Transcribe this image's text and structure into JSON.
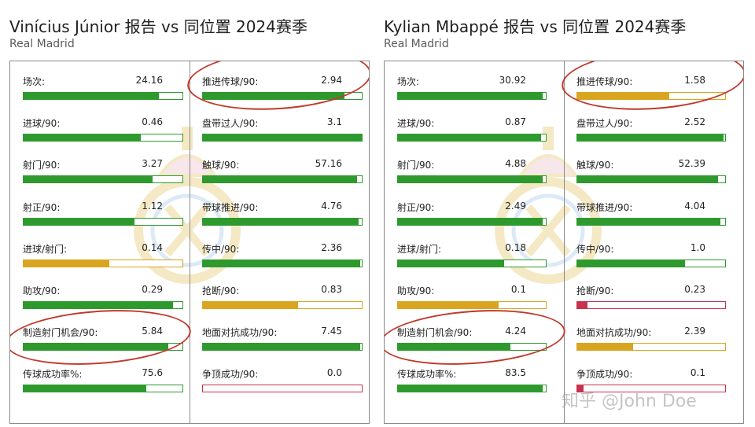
{
  "colors": {
    "good": "#2e9a2e",
    "mid": "#d9a520",
    "bad": "#c8324e"
  },
  "reports": [
    {
      "title": "Vinícius Júnior 报告 vs 同位置 2024赛季",
      "subtitle": "Real Madrid",
      "left": [
        {
          "label": "场次:",
          "value": "24.16",
          "pct": 0.85,
          "level": "good"
        },
        {
          "label": "进球/90:",
          "value": "0.46",
          "pct": 0.74,
          "level": "good"
        },
        {
          "label": "射门/90:",
          "value": "3.27",
          "pct": 0.81,
          "level": "good"
        },
        {
          "label": "射正/90:",
          "value": "1.12",
          "pct": 0.7,
          "level": "good"
        },
        {
          "label": "进球/射门:",
          "value": "0.14",
          "pct": 0.54,
          "level": "mid"
        },
        {
          "label": "助攻/90:",
          "value": "0.29",
          "pct": 0.94,
          "level": "good"
        },
        {
          "label": "制造射门机会/90:",
          "value": "5.84",
          "pct": 0.91,
          "level": "good"
        },
        {
          "label": "传球成功率%:",
          "value": "75.6",
          "pct": 0.77,
          "level": "good"
        }
      ],
      "right": [
        {
          "label": "推进传球/90:",
          "value": "2.94",
          "pct": 0.89,
          "level": "good"
        },
        {
          "label": "盘带过人/90:",
          "value": "3.1",
          "pct": 1.0,
          "level": "good"
        },
        {
          "label": "触球/90:",
          "value": "57.16",
          "pct": 0.97,
          "level": "good"
        },
        {
          "label": "带球推进/90:",
          "value": "4.76",
          "pct": 0.98,
          "level": "good"
        },
        {
          "label": "传中/90:",
          "value": "2.36",
          "pct": 0.99,
          "level": "good"
        },
        {
          "label": "抢断/90:",
          "value": "0.83",
          "pct": 0.6,
          "level": "mid"
        },
        {
          "label": "地面对抗成功/90:",
          "value": "7.45",
          "pct": 0.99,
          "level": "good"
        },
        {
          "label": "争顶成功/90:",
          "value": "0.0",
          "pct": 0.0,
          "level": "bad"
        }
      ]
    },
    {
      "title": "Kylian Mbappé 报告 vs 同位置 2024赛季",
      "subtitle": "Real Madrid",
      "left": [
        {
          "label": "场次:",
          "value": "30.92",
          "pct": 0.98,
          "level": "good"
        },
        {
          "label": "进球/90:",
          "value": "0.87",
          "pct": 0.97,
          "level": "good"
        },
        {
          "label": "射门/90:",
          "value": "4.88",
          "pct": 0.98,
          "level": "good"
        },
        {
          "label": "射正/90:",
          "value": "2.49",
          "pct": 0.98,
          "level": "good"
        },
        {
          "label": "进球/射门:",
          "value": "0.18",
          "pct": 0.72,
          "level": "good"
        },
        {
          "label": "助攻/90:",
          "value": "0.1",
          "pct": 0.68,
          "level": "mid"
        },
        {
          "label": "制造射门机会/90:",
          "value": "4.24",
          "pct": 0.76,
          "level": "good"
        },
        {
          "label": "传球成功率%:",
          "value": "83.5",
          "pct": 0.98,
          "level": "good"
        }
      ],
      "right": [
        {
          "label": "推进传球/90:",
          "value": "1.58",
          "pct": 0.62,
          "level": "mid"
        },
        {
          "label": "盘带过人/90:",
          "value": "2.52",
          "pct": 0.99,
          "level": "good"
        },
        {
          "label": "触球/90:",
          "value": "52.39",
          "pct": 0.95,
          "level": "good"
        },
        {
          "label": "带球推进/90:",
          "value": "4.04",
          "pct": 0.97,
          "level": "good"
        },
        {
          "label": "传中/90:",
          "value": "1.0",
          "pct": 0.73,
          "level": "good"
        },
        {
          "label": "抢断/90:",
          "value": "0.23",
          "pct": 0.07,
          "level": "bad"
        },
        {
          "label": "地面对抗成功/90:",
          "value": "2.39",
          "pct": 0.38,
          "level": "mid"
        },
        {
          "label": "争顶成功/90:",
          "value": "0.1",
          "pct": 0.04,
          "level": "bad"
        }
      ]
    }
  ],
  "watermark": "知乎 @John Doe"
}
